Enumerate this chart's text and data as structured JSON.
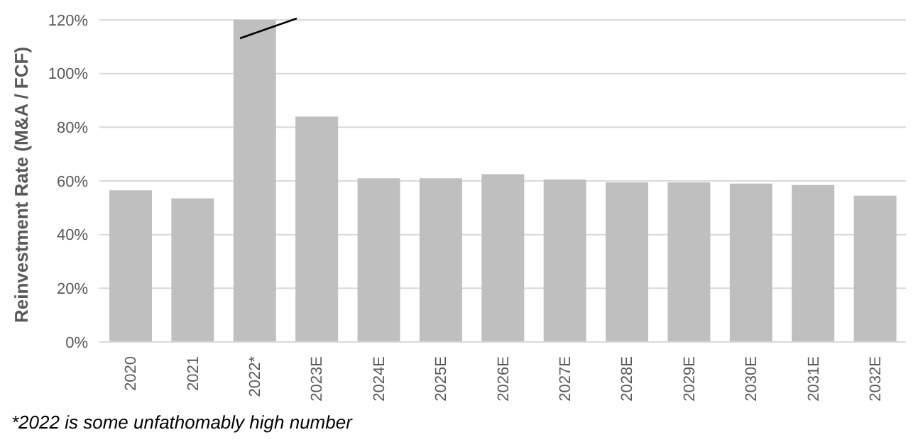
{
  "chart_data": {
    "type": "bar",
    "ylabel": "Reinvestment Rate (M&A / FCF)",
    "categories": [
      "2020",
      "2021",
      "2022*",
      "2023E",
      "2024E",
      "2025E",
      "2026E",
      "2027E",
      "2028E",
      "2029E",
      "2030E",
      "2031E",
      "2032E"
    ],
    "values": [
      56.5,
      53.5,
      120,
      84,
      61,
      61,
      62.5,
      60.5,
      59.5,
      59.5,
      59,
      58.5,
      54.5
    ],
    "color": "#bfbfbf",
    "ylim": [
      0,
      120
    ],
    "yticks": [
      {
        "value": 0,
        "label": "0%"
      },
      {
        "value": 20,
        "label": "20%"
      },
      {
        "value": 40,
        "label": "40%"
      },
      {
        "value": 60,
        "label": "60%"
      },
      {
        "value": 80,
        "label": "80%"
      },
      {
        "value": 100,
        "label": "100%"
      },
      {
        "value": 120,
        "label": "120%"
      }
    ],
    "grid": "y",
    "legend": false,
    "annotations": [
      "*2022 is some unfathomably high number"
    ]
  }
}
